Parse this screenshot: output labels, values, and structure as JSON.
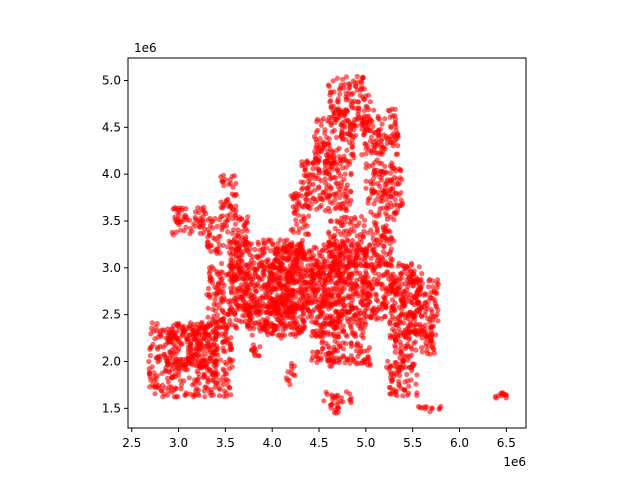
{
  "chart_data": {
    "type": "scatter",
    "title": "",
    "xlabel": "",
    "ylabel": "",
    "x_offset_label": "1e6",
    "y_offset_label": "1e6",
    "xlim": [
      2.46,
      6.71
    ],
    "ylim": [
      1.29,
      5.24
    ],
    "x_ticks": [
      2.5,
      3.0,
      3.5,
      4.0,
      4.5,
      5.0,
      5.5,
      6.0,
      6.5
    ],
    "x_tick_labels": [
      "2.5",
      "3.0",
      "3.5",
      "4.0",
      "4.5",
      "5.0",
      "5.5",
      "6.0",
      "6.5"
    ],
    "y_ticks": [
      1.5,
      2.0,
      2.5,
      3.0,
      3.5,
      4.0,
      4.5,
      5.0
    ],
    "y_tick_labels": [
      "1.5",
      "2.0",
      "2.5",
      "3.0",
      "3.5",
      "4.0",
      "4.5",
      "5.0"
    ],
    "grid": false,
    "marker_color": "#ff0000",
    "regions": [
      {
        "x0": 2.68,
        "x1": 3.58,
        "y0": 1.62,
        "y1": 2.42
      },
      {
        "x0": 2.88,
        "x1": 3.42,
        "y0": 1.95,
        "y1": 2.4
      },
      {
        "x0": 3.3,
        "x1": 4.25,
        "y0": 2.35,
        "y1": 3.05
      },
      {
        "x0": 3.55,
        "x1": 4.35,
        "y0": 2.5,
        "y1": 3.3
      },
      {
        "x0": 3.7,
        "x1": 4.35,
        "y0": 2.25,
        "y1": 2.6
      },
      {
        "x0": 4.0,
        "x1": 5.05,
        "y0": 2.6,
        "y1": 3.25
      },
      {
        "x0": 4.35,
        "x1": 5.6,
        "y0": 2.45,
        "y1": 3.05
      },
      {
        "x0": 4.6,
        "x1": 5.3,
        "y0": 3.0,
        "y1": 3.55
      },
      {
        "x0": 4.5,
        "x1": 5.0,
        "y0": 2.25,
        "y1": 2.55
      },
      {
        "x0": 5.25,
        "x1": 5.78,
        "y0": 2.25,
        "y1": 2.9
      },
      {
        "x0": 5.3,
        "x1": 5.75,
        "y0": 2.05,
        "y1": 2.4
      },
      {
        "x0": 4.42,
        "x1": 4.72,
        "y0": 1.98,
        "y1": 2.45
      },
      {
        "x0": 4.6,
        "x1": 5.05,
        "y0": 1.95,
        "y1": 2.2
      },
      {
        "x0": 4.55,
        "x1": 4.85,
        "y0": 1.55,
        "y1": 1.68
      },
      {
        "x0": 4.62,
        "x1": 4.78,
        "y0": 1.45,
        "y1": 1.55
      },
      {
        "x0": 5.25,
        "x1": 5.55,
        "y0": 1.62,
        "y1": 1.95
      },
      {
        "x0": 5.22,
        "x1": 5.52,
        "y0": 1.9,
        "y1": 2.05
      },
      {
        "x0": 4.15,
        "x1": 4.25,
        "y0": 1.75,
        "y1": 1.98
      },
      {
        "x0": 3.78,
        "x1": 3.88,
        "y0": 2.05,
        "y1": 2.22
      },
      {
        "x0": 2.9,
        "x1": 3.3,
        "y0": 3.35,
        "y1": 3.65
      },
      {
        "x0": 3.3,
        "x1": 3.75,
        "y0": 3.15,
        "y1": 3.55
      },
      {
        "x0": 3.45,
        "x1": 3.62,
        "y0": 3.55,
        "y1": 4.0
      },
      {
        "x0": 4.2,
        "x1": 4.4,
        "y0": 3.35,
        "y1": 3.8
      },
      {
        "x0": 4.3,
        "x1": 4.85,
        "y0": 3.6,
        "y1": 4.15
      },
      {
        "x0": 4.45,
        "x1": 4.9,
        "y0": 4.1,
        "y1": 4.6
      },
      {
        "x0": 4.6,
        "x1": 5.05,
        "y0": 4.5,
        "y1": 5.05
      },
      {
        "x0": 4.95,
        "x1": 5.35,
        "y0": 4.2,
        "y1": 4.7
      },
      {
        "x0": 5.0,
        "x1": 5.4,
        "y0": 3.55,
        "y1": 4.15
      },
      {
        "x0": 5.55,
        "x1": 5.8,
        "y0": 1.46,
        "y1": 1.52
      },
      {
        "x0": 6.36,
        "x1": 6.5,
        "y0": 1.6,
        "y1": 1.68
      }
    ]
  }
}
